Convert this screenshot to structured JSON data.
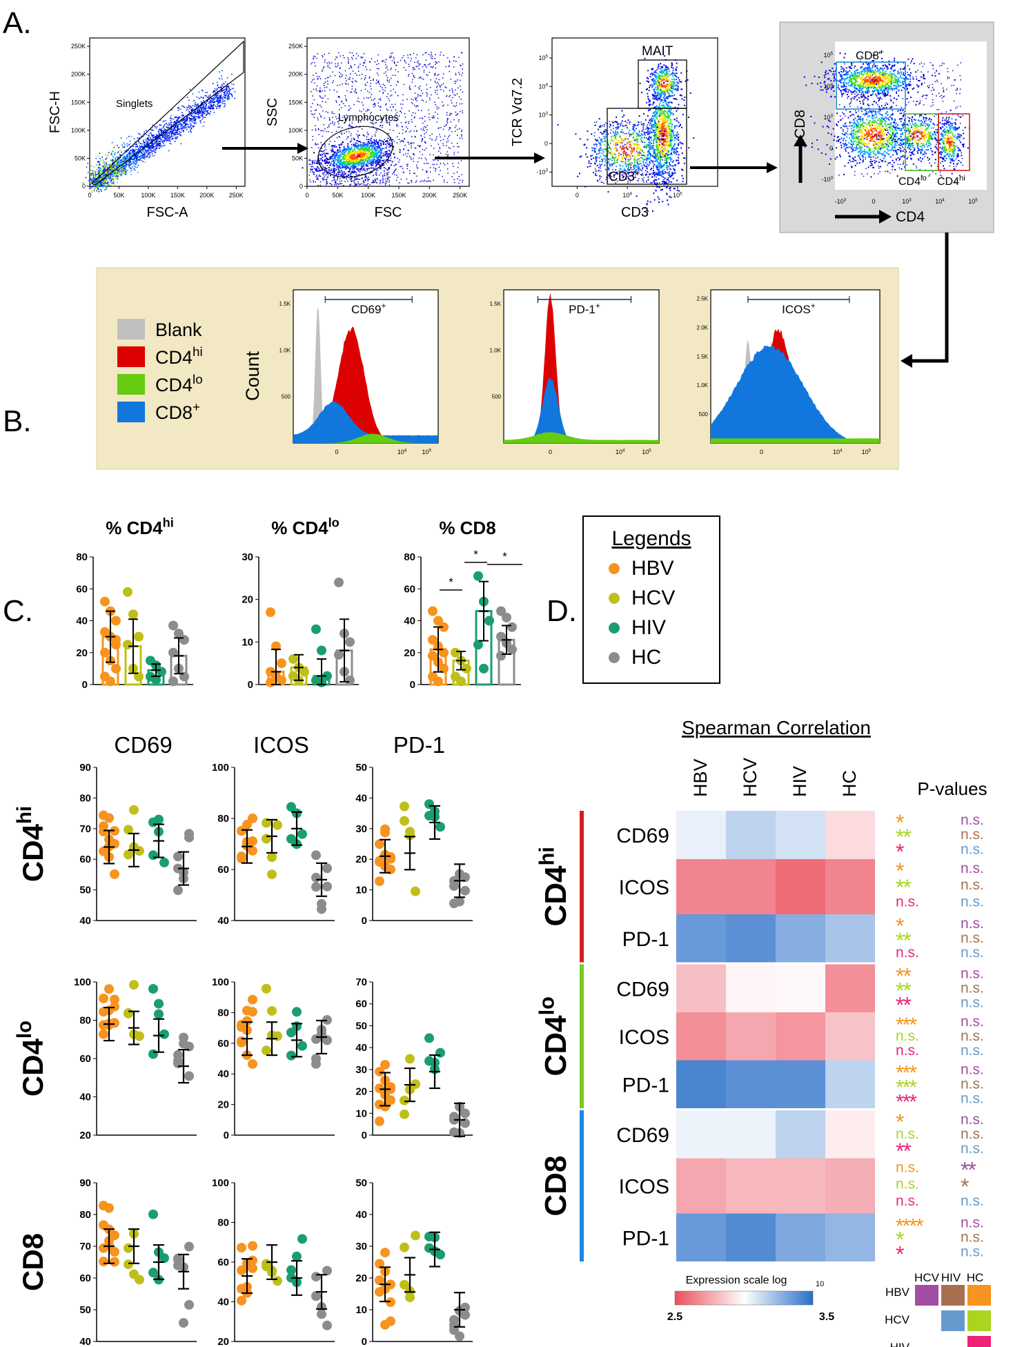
{
  "panel_labels": {
    "A": "A.",
    "B": "B.",
    "C": "C.",
    "D": "D."
  },
  "panel_a": {
    "plots": [
      {
        "xlabel": "FSC-A",
        "ylabel": "FSC-H",
        "gate": "Singlets",
        "xticks": [
          "0",
          "50K",
          "100K",
          "150K",
          "200K",
          "250K"
        ],
        "yticks": [
          "0",
          "50K",
          "100K",
          "150K",
          "200K",
          "250K"
        ]
      },
      {
        "xlabel": "FSC",
        "ylabel": "SSC",
        "gate": "Lymphocytes",
        "xticks": [
          "0",
          "50K",
          "100K",
          "150K",
          "200K",
          "250K"
        ],
        "yticks": [
          "0",
          "50K",
          "100K",
          "150K",
          "200K",
          "250K"
        ]
      },
      {
        "xlabel": "CD3",
        "ylabel": "TCR Vα7.2",
        "gates": [
          "MAIT",
          "CD3+"
        ],
        "xticks": [
          "0",
          "10^4",
          "10^5"
        ],
        "yticks": [
          "-10^3",
          "0",
          "10^3",
          "10^4",
          "10^5"
        ]
      },
      {
        "xlabel": "CD4",
        "ylabel": "CD8",
        "gates": [
          "CD8+",
          "CD4lo",
          "CD4hi"
        ],
        "xticks": [
          "-10^3",
          "0",
          "10^3",
          "10^4",
          "10^5"
        ],
        "yticks": [
          "-10^3",
          "0",
          "10^3",
          "10^4",
          "10^5"
        ]
      }
    ],
    "histograms": {
      "ylabel": "Count",
      "legend": [
        "Blank",
        "CD4hi",
        "CD4lo",
        "CD8+"
      ],
      "legend_colors": [
        "#c0c0c0",
        "#dd0000",
        "#66cc11",
        "#1177dd"
      ],
      "plots": [
        {
          "gate": "CD69+",
          "yticks": [
            "500",
            "1.0K",
            "1.5K"
          ],
          "xticks": [
            "0",
            "10^4",
            "10^5"
          ]
        },
        {
          "gate": "PD-1+",
          "yticks": [
            "500",
            "1.0K",
            "1.5K"
          ],
          "xticks": [
            "0",
            "10^4",
            "10^5"
          ]
        },
        {
          "gate": "ICOS+",
          "yticks": [
            "500",
            "1.0K",
            "1.5K",
            "2.0K",
            "2.5K"
          ],
          "xticks": [
            "0",
            "10^4",
            "10^5"
          ]
        }
      ]
    }
  },
  "panel_b": {
    "titles": [
      "% CD4hi",
      "% CD4lo",
      "% CD8"
    ],
    "legend_title": "Legends",
    "groups": [
      "HBV",
      "HCV",
      "HIV",
      "HC"
    ],
    "colors": [
      "#f7931e",
      "#bfbf1a",
      "#1a9e6e",
      "#8c8c8c"
    ],
    "significance": "*"
  },
  "panel_c": {
    "col_titles": [
      "CD69",
      "ICOS",
      "PD-1"
    ],
    "row_titles": [
      "CD4hi",
      "CD4lo",
      "CD8"
    ]
  },
  "panel_d": {
    "title": "Spearman Correlation",
    "columns": [
      "HBV",
      "HCV",
      "HIV",
      "HC"
    ],
    "pvalues_title": "P-values",
    "groups": [
      "CD4hi",
      "CD4lo",
      "CD8"
    ],
    "rows": [
      "CD69",
      "ICOS",
      "PD-1"
    ],
    "scale_title": "Expression scale log10",
    "scale_min": "2.5",
    "scale_max": "3.5",
    "key_top": [
      "HCV",
      "HIV",
      "HC"
    ],
    "key_left": [
      "HBV",
      "HCV",
      "HIV"
    ],
    "ns": "n.s."
  },
  "chart_data": [
    {
      "type": "bar",
      "title": "% CD4hi",
      "categories": [
        "HBV",
        "HCV",
        "HIV",
        "HC"
      ],
      "values": [
        30,
        24,
        9,
        18
      ],
      "ylim": [
        0,
        80
      ],
      "yticks": [
        0,
        20,
        40,
        60,
        80
      ]
    },
    {
      "type": "bar",
      "title": "% CD4lo",
      "categories": [
        "HBV",
        "HCV",
        "HIV",
        "HC"
      ],
      "values": [
        3,
        4,
        2,
        8
      ],
      "ylim": [
        0,
        30
      ],
      "yticks": [
        0,
        10,
        20,
        30
      ]
    },
    {
      "type": "bar",
      "title": "% CD8",
      "categories": [
        "HBV",
        "HCV",
        "HIV",
        "HC"
      ],
      "values": [
        22,
        15,
        46,
        28
      ],
      "ylim": [
        0,
        80
      ],
      "yticks": [
        0,
        20,
        40,
        60,
        80
      ]
    },
    {
      "type": "heatmap",
      "title": "Spearman Correlation",
      "columns": [
        "HBV",
        "HCV",
        "HIV",
        "HC"
      ],
      "rows": [
        "CD4hi CD69",
        "CD4hi ICOS",
        "CD4hi PD-1",
        "CD4lo CD69",
        "CD4lo ICOS",
        "CD4lo PD-1",
        "CD8 CD69",
        "CD8 ICOS",
        "CD8 PD-1"
      ],
      "values": [
        [
          3.05,
          3.15,
          3.1,
          2.9
        ],
        [
          2.65,
          2.65,
          2.58,
          2.65
        ],
        [
          3.35,
          3.38,
          3.28,
          3.2
        ],
        [
          2.82,
          2.97,
          2.98,
          2.68
        ],
        [
          2.68,
          2.75,
          2.7,
          2.83
        ],
        [
          3.42,
          3.38,
          3.38,
          3.15
        ],
        [
          3.04,
          3.04,
          3.15,
          2.95
        ],
        [
          2.75,
          2.8,
          2.8,
          2.77
        ],
        [
          3.35,
          3.4,
          3.3,
          3.25
        ]
      ],
      "pvalues": [
        [
          "*",
          "**",
          "*",
          "n.s.",
          "n.s.",
          "n.s."
        ],
        [
          "*",
          "**",
          "n.s.",
          "n.s.",
          "n.s.",
          "n.s."
        ],
        [
          "*",
          "**",
          "n.s.",
          "n.s.",
          "n.s.",
          "n.s."
        ],
        [
          "**",
          "**",
          "**",
          "n.s.",
          "n.s.",
          "n.s."
        ],
        [
          "***",
          "n.s.",
          "n.s.",
          "n.s.",
          "n.s.",
          "n.s."
        ],
        [
          "***",
          "***",
          "***",
          "n.s.",
          "n.s.",
          "n.s."
        ],
        [
          "*",
          "n.s.",
          "**",
          "n.s.",
          "n.s.",
          "n.s."
        ],
        [
          "n.s.",
          "n.s.",
          "n.s.",
          "**",
          "*",
          "n.s."
        ],
        [
          "****",
          "*",
          "*",
          "n.s.",
          "n.s.",
          "n.s."
        ]
      ],
      "scale": [
        2.5,
        3.5
      ]
    }
  ]
}
